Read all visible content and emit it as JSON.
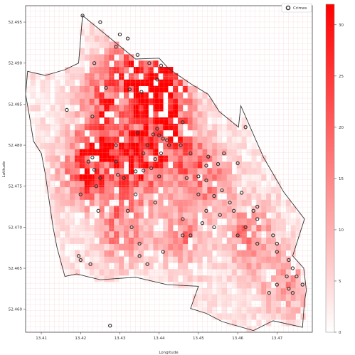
{
  "chart_data": {
    "type": "heatmap",
    "title": "",
    "xlabel": "Longitude",
    "ylabel": "Latitude",
    "xlim": [
      13.406,
      13.479
    ],
    "ylim": [
      52.4572,
      52.497
    ],
    "xticks": [
      "13.41",
      "13.42",
      "13.43",
      "13.44",
      "13.45",
      "13.46",
      "13.47"
    ],
    "yticks": [
      "52.460",
      "52.465",
      "52.470",
      "52.475",
      "52.480",
      "52.485",
      "52.490",
      "52.495"
    ],
    "grid": true,
    "colormap": {
      "low": "#ffffff",
      "high": "#ff0000"
    },
    "colorbar": {
      "min": 0,
      "max": 32,
      "ticks": [
        "0",
        "5",
        "10",
        "15",
        "20",
        "25",
        "30"
      ]
    },
    "cell_size_deg": {
      "lon": 0.00125,
      "lat": 0.00077
    },
    "cell_value_seed": 20241,
    "hotspots": [
      {
        "lon": 13.4215,
        "lat": 52.4772,
        "value": 28
      },
      {
        "lon": 13.4285,
        "lat": 52.4805,
        "value": 26
      },
      {
        "lon": 13.438,
        "lat": 52.4862,
        "value": 24
      },
      {
        "lon": 13.442,
        "lat": 52.4862,
        "value": 30
      },
      {
        "lon": 13.433,
        "lat": 52.49,
        "value": 20
      },
      {
        "lon": 13.435,
        "lat": 52.4775,
        "value": 22
      },
      {
        "lon": 13.444,
        "lat": 52.4795,
        "value": 20
      },
      {
        "lon": 13.4305,
        "lat": 52.47,
        "value": 18
      },
      {
        "lon": 13.452,
        "lat": 52.476,
        "value": 16
      },
      {
        "lon": 13.463,
        "lat": 52.469,
        "value": 15
      },
      {
        "lon": 13.446,
        "lat": 52.469,
        "value": 14
      },
      {
        "lon": 13.472,
        "lat": 52.463,
        "value": 12
      },
      {
        "lon": 13.4255,
        "lat": 52.486,
        "value": 18
      }
    ],
    "boundary": [
      [
        13.4205,
        52.4958
      ],
      [
        13.434,
        52.4905
      ],
      [
        13.44,
        52.4906
      ],
      [
        13.4425,
        52.4893
      ],
      [
        13.448,
        52.4875
      ],
      [
        13.4525,
        52.4862
      ],
      [
        13.4553,
        52.4841
      ],
      [
        13.4602,
        52.4822
      ],
      [
        13.4608,
        52.4848
      ],
      [
        13.4666,
        52.4785
      ],
      [
        13.4717,
        52.4743
      ],
      [
        13.477,
        52.471
      ],
      [
        13.474,
        52.4665
      ],
      [
        13.4768,
        52.465
      ],
      [
        13.4775,
        52.4623
      ],
      [
        13.477,
        52.461
      ],
      [
        13.4765,
        52.4578
      ],
      [
        13.469,
        52.4586
      ],
      [
        13.464,
        52.4574
      ],
      [
        13.456,
        52.4585
      ],
      [
        13.452,
        52.4595
      ],
      [
        13.448,
        52.4601
      ],
      [
        13.45,
        52.4628
      ],
      [
        13.442,
        52.463
      ],
      [
        13.434,
        52.4639
      ],
      [
        13.425,
        52.4636
      ],
      [
        13.419,
        52.4643
      ],
      [
        13.416,
        52.464
      ],
      [
        13.414,
        52.4675
      ],
      [
        13.413,
        52.47
      ],
      [
        13.411,
        52.4765
      ],
      [
        13.41,
        52.479
      ],
      [
        13.408,
        52.4805
      ],
      [
        13.407,
        52.4835
      ],
      [
        13.406,
        52.4862
      ],
      [
        13.4065,
        52.489
      ],
      [
        13.411,
        52.4885
      ],
      [
        13.416,
        52.4892
      ],
      [
        13.4195,
        52.49
      ],
      [
        13.4205,
        52.4958
      ]
    ],
    "legend": {
      "position": "top-right",
      "label": "Crimes"
    },
    "markers": {
      "name": "Crimes",
      "x": [
        13.4205,
        13.425,
        13.43,
        13.432,
        13.429,
        13.4345,
        13.4235,
        13.4375,
        13.4405,
        13.4395,
        13.4265,
        13.4325,
        13.4355,
        13.4165,
        13.423,
        13.4395,
        13.446,
        13.462,
        13.4345,
        13.4385,
        13.44,
        13.441,
        13.442,
        13.429,
        13.437,
        13.4425,
        13.4405,
        13.4455,
        13.448,
        13.4525,
        13.4565,
        13.46,
        13.452,
        13.455,
        13.436,
        13.439,
        13.423,
        13.422,
        13.4235,
        13.425,
        13.4295,
        13.434,
        13.436,
        13.438,
        13.44,
        13.447,
        13.45,
        13.452,
        13.45,
        13.454,
        13.456,
        13.461,
        13.458,
        13.459,
        13.464,
        13.465,
        13.462,
        13.46,
        13.469,
        13.465,
        13.47,
        13.473,
        13.474,
        13.475,
        13.4765,
        13.473,
        13.47,
        13.468,
        13.448,
        13.454,
        13.446,
        13.452,
        13.439,
        13.434,
        13.431,
        13.429,
        13.424,
        13.42,
        13.432,
        13.433,
        13.435,
        13.441,
        13.446,
        13.451,
        13.4555,
        13.465,
        13.47,
        13.4725,
        13.474,
        13.42,
        13.4245,
        13.437,
        13.4225,
        13.4195,
        13.435,
        13.4275
      ],
      "y": [
        52.4958,
        52.495,
        52.4935,
        52.493,
        52.492,
        52.491,
        52.49,
        52.49,
        52.4897,
        52.488,
        52.487,
        52.4868,
        52.4865,
        52.4843,
        52.4835,
        52.482,
        52.4828,
        52.4822,
        52.4815,
        52.4813,
        52.4812,
        52.4808,
        52.4806,
        52.48,
        52.48,
        52.48,
        52.479,
        52.48,
        52.479,
        52.4786,
        52.479,
        52.4778,
        52.4775,
        52.4777,
        52.479,
        52.4783,
        52.4785,
        52.478,
        52.477,
        52.476,
        52.4764,
        52.4768,
        52.4769,
        52.4772,
        52.4762,
        52.476,
        52.4762,
        52.4757,
        52.474,
        52.4738,
        52.4745,
        52.4742,
        52.473,
        52.472,
        52.472,
        52.471,
        52.47,
        52.469,
        52.469,
        52.468,
        52.467,
        52.466,
        52.465,
        52.464,
        52.463,
        52.4625,
        52.463,
        52.462,
        52.469,
        52.47,
        52.471,
        52.472,
        52.473,
        52.474,
        52.476,
        52.478,
        52.475,
        52.474,
        52.472,
        52.47,
        52.468,
        52.467,
        52.469,
        52.4705,
        52.4715,
        52.4725,
        52.468,
        52.464,
        52.462,
        52.466,
        52.472,
        52.4655,
        52.4655,
        52.4665,
        52.4665,
        52.458
      ]
    }
  }
}
